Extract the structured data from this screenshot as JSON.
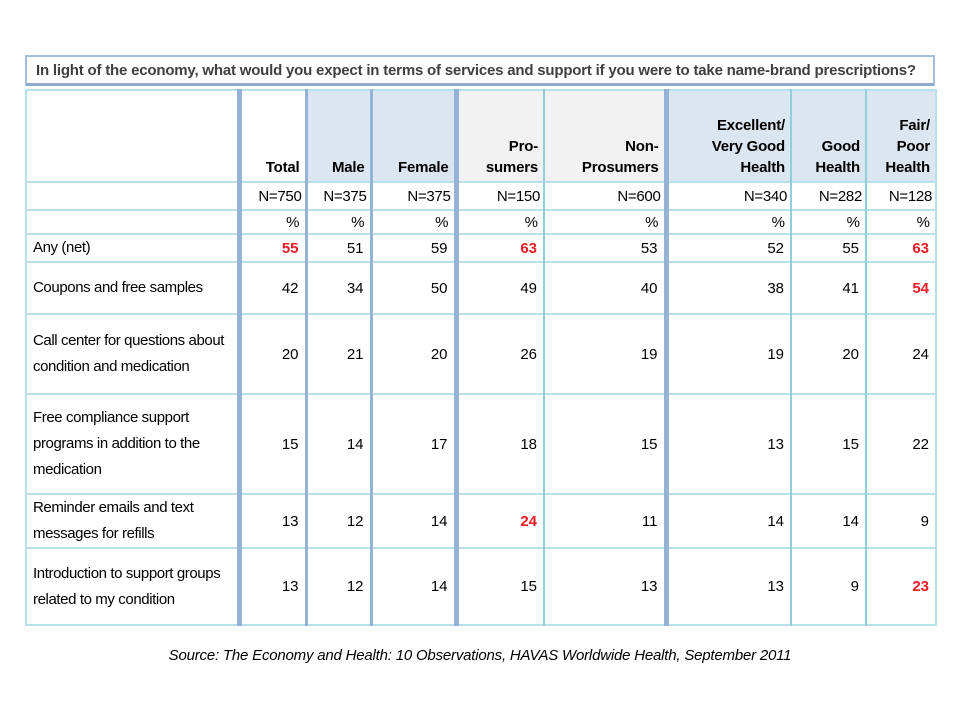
{
  "chart_data": {
    "type": "table",
    "title": "In light of the economy, what would you expect in terms of services and support if you were to take name-brand prescriptions?",
    "unit_label": "%",
    "columns": [
      {
        "label": "Total",
        "n": "N=750",
        "shade": "none"
      },
      {
        "label": "Male",
        "n": "N=375",
        "shade": "blue"
      },
      {
        "label": "Female",
        "n": "N=375",
        "shade": "blue"
      },
      {
        "label": "Pro-\nsumers",
        "n": "N=150",
        "shade": "gray"
      },
      {
        "label": "Non-\nProsumers",
        "n": "N=600",
        "shade": "gray"
      },
      {
        "label": "Excellent/\nVery Good\nHealth",
        "n": "N=340",
        "shade": "blue"
      },
      {
        "label": "Good\nHealth",
        "n": "N=282",
        "shade": "blue"
      },
      {
        "label": "Fair/\nPoor\nHealth",
        "n": "N=128",
        "shade": "blue"
      }
    ],
    "rows": [
      {
        "label": "Any (net)",
        "values": [
          55,
          51,
          59,
          63,
          53,
          52,
          55,
          63
        ],
        "highlight_cols": [
          0,
          3,
          7
        ]
      },
      {
        "label": "Coupons and free samples",
        "values": [
          42,
          34,
          50,
          49,
          40,
          38,
          41,
          54
        ],
        "highlight_cols": [
          7
        ]
      },
      {
        "label": "Call center for questions about condition and medication",
        "values": [
          20,
          21,
          20,
          26,
          19,
          19,
          20,
          24
        ],
        "highlight_cols": []
      },
      {
        "label": "Free compliance support programs in addition to the medication",
        "values": [
          15,
          14,
          17,
          18,
          15,
          13,
          15,
          22
        ],
        "highlight_cols": []
      },
      {
        "label": "Reminder emails and text messages for refills",
        "values": [
          13,
          12,
          14,
          24,
          11,
          14,
          14,
          9
        ],
        "highlight_cols": [
          3
        ]
      },
      {
        "label": "Introduction to support groups related to my condition",
        "values": [
          13,
          12,
          14,
          15,
          13,
          13,
          9,
          23
        ],
        "highlight_cols": [
          7
        ]
      }
    ],
    "source": "Source: The Economy and Health: 10 Observations, HAVAS Worldwide Health, September 2011",
    "colors": {
      "highlight_value": "#ed1c24",
      "header_shade_blue": "#dce6f1",
      "header_shade_gray": "#f2f2f2",
      "group_separator_blue": "#95b3d7",
      "gridline_cyan": "#b7e0ec",
      "title_border": "#a3bdda",
      "title_text": "#3f3f3f"
    }
  }
}
